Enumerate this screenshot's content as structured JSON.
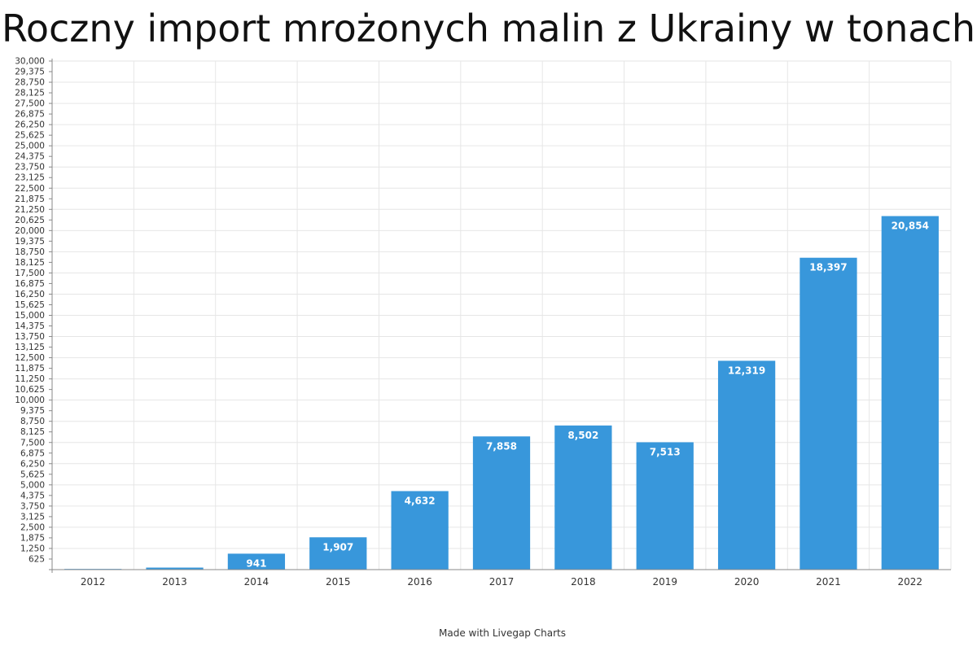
{
  "title": "Roczny import mrożonych malin z Ukrainy w tonach",
  "footer": "Made with Livegap Charts",
  "colors": {
    "bar": "#3897DB",
    "grid": "#E6E6E6",
    "axis": "#888888",
    "text": "#333333",
    "label": "#ffffff"
  },
  "chart_data": {
    "type": "bar",
    "title": "Roczny import mrożonych malin z Ukrainy w tonach",
    "xlabel": "",
    "ylabel": "",
    "categories": [
      "2012",
      "2013",
      "2014",
      "2015",
      "2016",
      "2017",
      "2018",
      "2019",
      "2020",
      "2021",
      "2022"
    ],
    "values": [
      40,
      120,
      941,
      1907,
      4632,
      7858,
      8502,
      7513,
      12319,
      18397,
      20854
    ],
    "data_labels": [
      "",
      "",
      "941",
      "1,907",
      "4,632",
      "7,858",
      "8,502",
      "7,513",
      "12,319",
      "18,397",
      "20,854"
    ],
    "ylim": [
      0,
      30000
    ],
    "ytick_step": 625,
    "grid": true,
    "legend": "none"
  }
}
